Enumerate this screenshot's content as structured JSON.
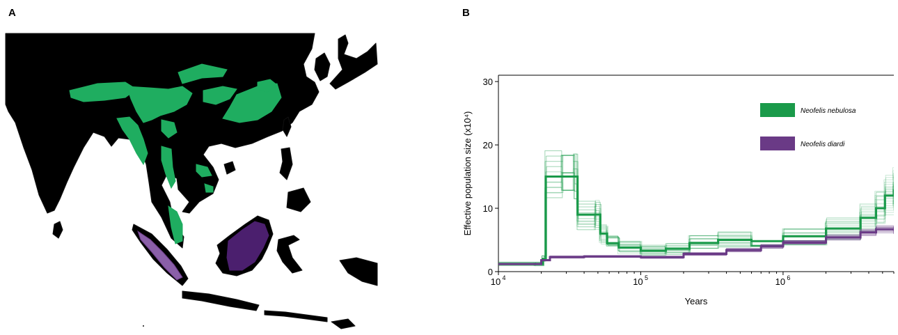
{
  "panels": {
    "a_label": "A",
    "b_label": "B"
  },
  "colors": {
    "nebulosa": "#1a9a4a",
    "nebulosa_range": "#1fad60",
    "diardi": "#6a3a86",
    "diardi_range": "#4b1f6e",
    "land": "#dcdcdc",
    "sea": "#ffffff",
    "coast": "#111111"
  },
  "map": {
    "species_ranges": [
      "Neofelis nebulosa",
      "Neofelis diardi"
    ]
  },
  "chart_data": {
    "type": "line",
    "xlabel": "Years",
    "ylabel": "Effective population size (x10⁴)",
    "x_scale": "log",
    "xlim": [
      10000,
      6000000
    ],
    "ylim": [
      0,
      31
    ],
    "x_ticks": [
      {
        "value": 10000,
        "base": "10",
        "exp": "4"
      },
      {
        "value": 100000,
        "base": "10",
        "exp": "5"
      },
      {
        "value": 1000000,
        "base": "10",
        "exp": "6"
      }
    ],
    "y_ticks": [
      0,
      10,
      20,
      30
    ],
    "legend_position": "top-right",
    "series": [
      {
        "name": "Neofelis nebulosa",
        "color": "#1a9a4a",
        "points": [
          [
            10000,
            1.2
          ],
          [
            18000,
            1.2
          ],
          [
            20500,
            2.0
          ],
          [
            21500,
            15.0
          ],
          [
            28000,
            15.0
          ],
          [
            34000,
            15.0
          ],
          [
            36000,
            9.0
          ],
          [
            48000,
            9.0
          ],
          [
            52000,
            6.0
          ],
          [
            58000,
            4.5
          ],
          [
            70000,
            3.8
          ],
          [
            100000,
            3.3
          ],
          [
            150000,
            3.6
          ],
          [
            220000,
            4.5
          ],
          [
            350000,
            5.0
          ],
          [
            600000,
            4.8
          ],
          [
            1000000,
            5.6
          ],
          [
            2000000,
            6.8
          ],
          [
            3500000,
            8.5
          ],
          [
            4500000,
            10.0
          ],
          [
            5200000,
            12.0
          ],
          [
            6000000,
            13.0
          ]
        ]
      },
      {
        "name": "Neofelis diardi",
        "color": "#6a3a86",
        "points": [
          [
            10000,
            1.2
          ],
          [
            18000,
            1.2
          ],
          [
            20000,
            1.8
          ],
          [
            23000,
            2.3
          ],
          [
            40000,
            2.4
          ],
          [
            100000,
            2.3
          ],
          [
            200000,
            2.8
          ],
          [
            400000,
            3.4
          ],
          [
            700000,
            4.0
          ],
          [
            1000000,
            4.6
          ],
          [
            2000000,
            5.4
          ],
          [
            3500000,
            6.2
          ],
          [
            4500000,
            6.7
          ],
          [
            6000000,
            6.5
          ]
        ]
      }
    ]
  }
}
